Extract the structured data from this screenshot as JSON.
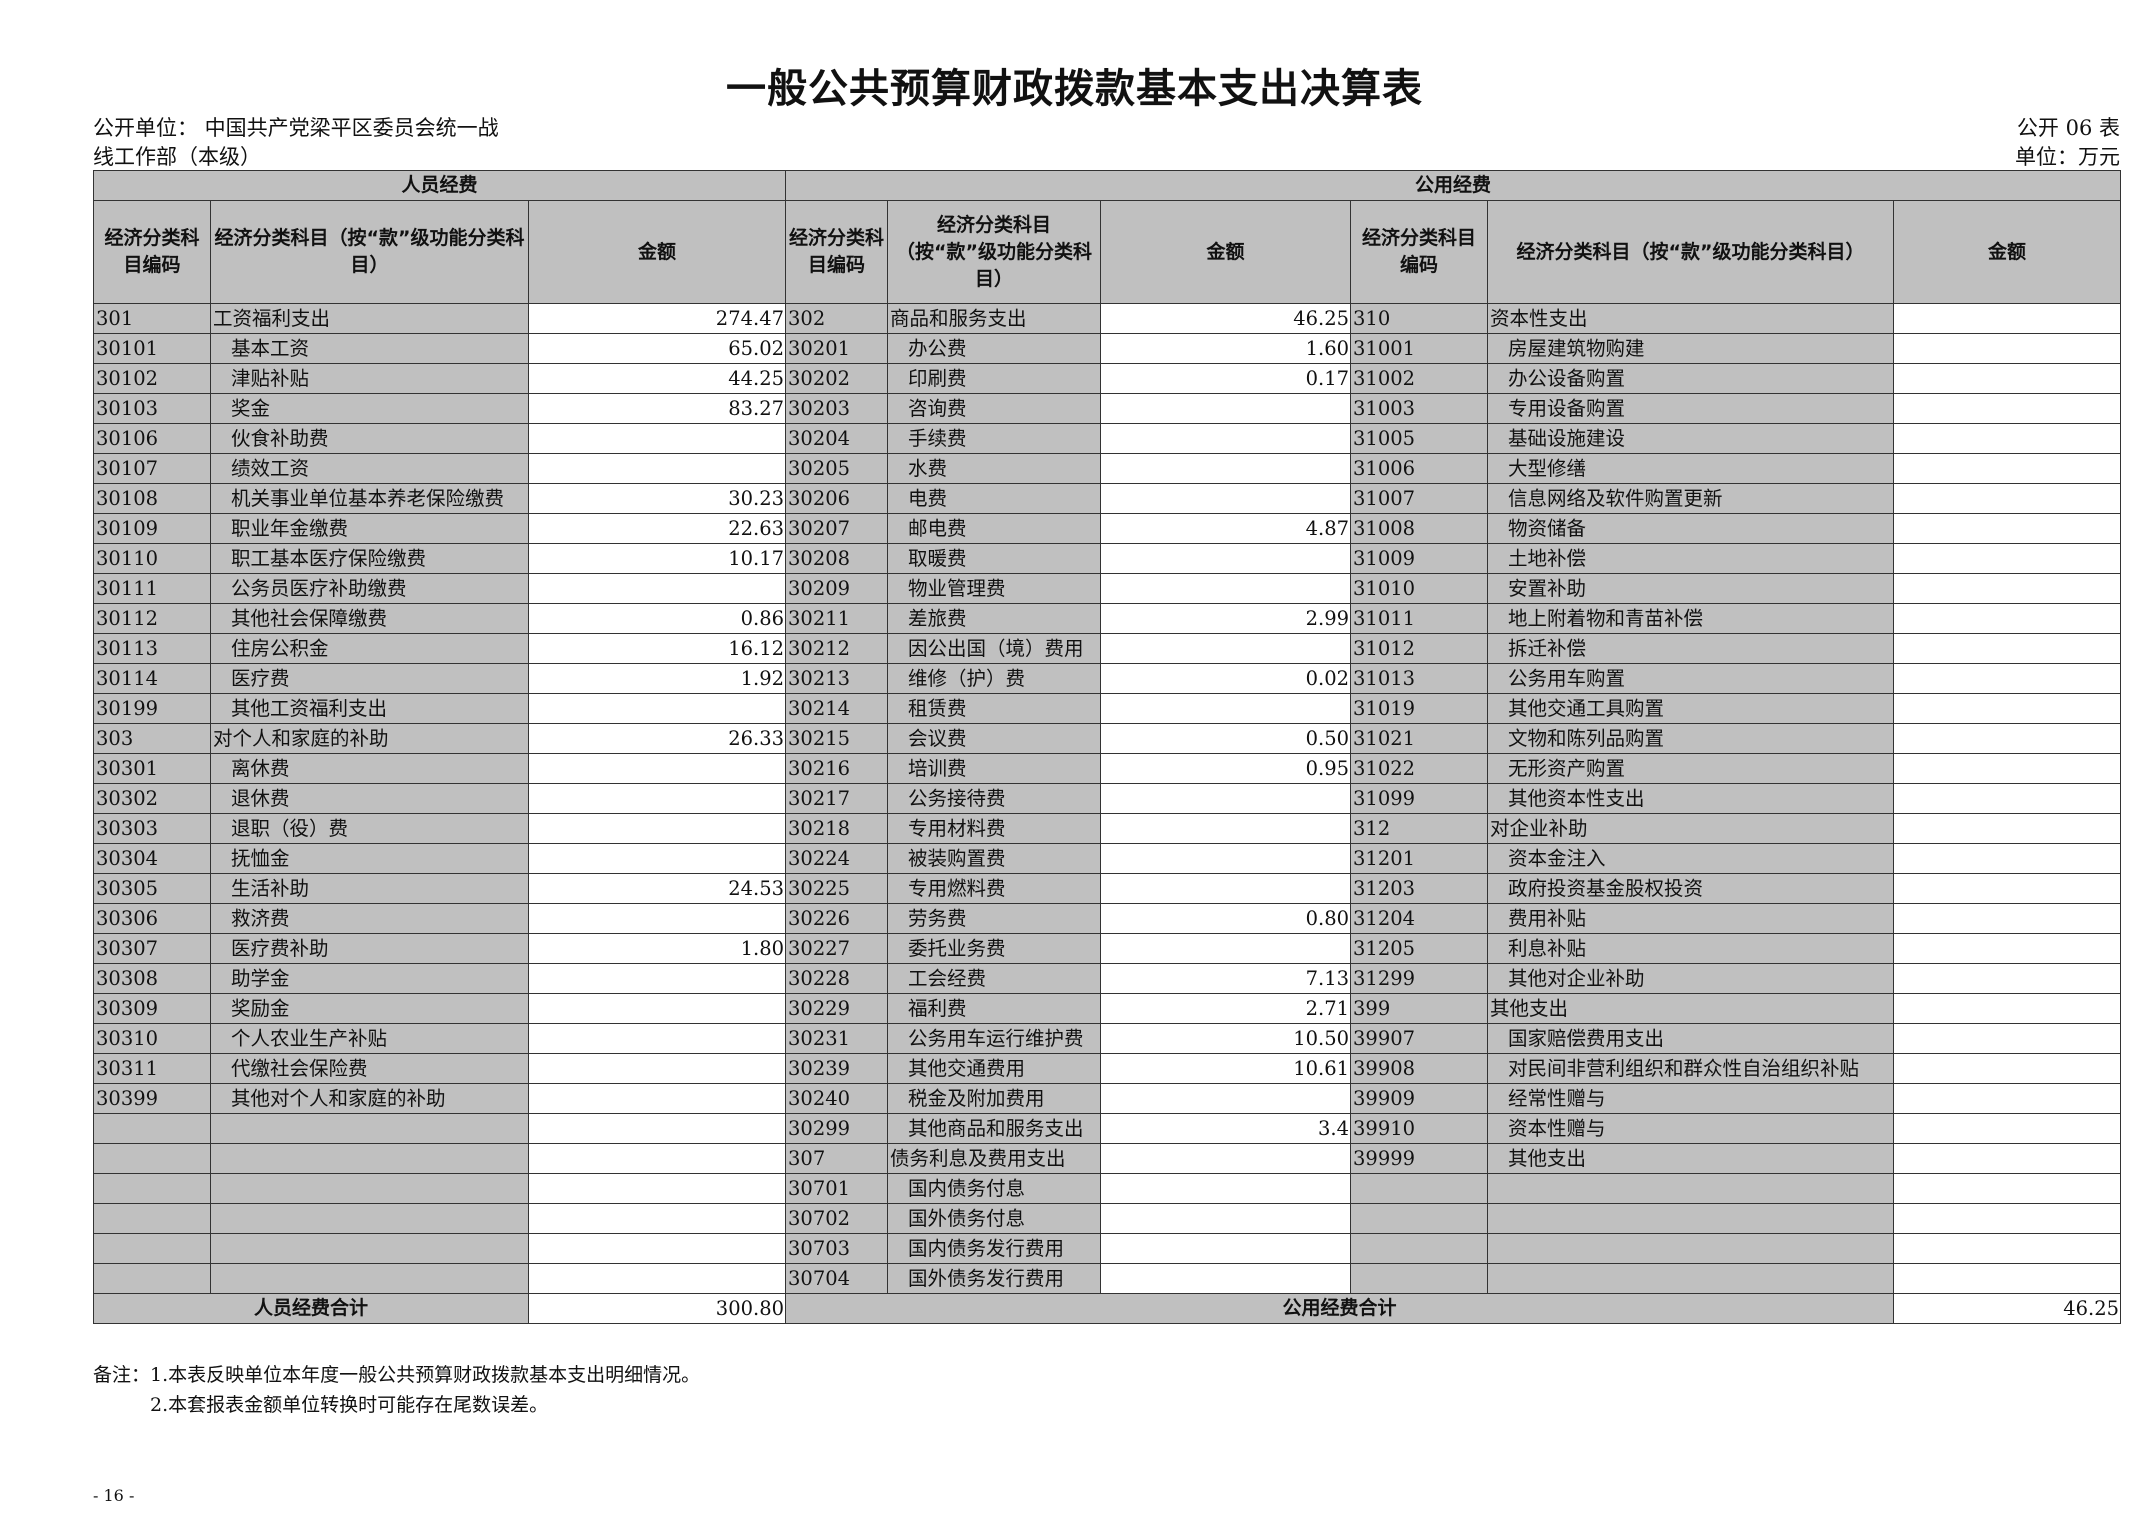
{
  "title": "一般公共预算财政拨款基本支出决算表",
  "unit_label": "公开单位：  中国共产党梁平区委员会统一战",
  "unit_label_2": "线工作部（本级）",
  "table_no": "公开 06 表",
  "currency_unit": "单位：万元",
  "headers": {
    "personnel": "人员经费",
    "public": "公用经费",
    "code_a": "经济分类科目编码",
    "name_a": "经济分类科目（按“款”级功能分类科目）",
    "amount": "金额",
    "code_b": "经济分类科目编码",
    "name_b": "经济分类科目（按“款”级功能分类科目）",
    "code_c": "经济分类科目编码",
    "name_c": "经济分类科目（按“款”级功能分类科目）"
  },
  "personnel_rows": [
    {
      "code": "301",
      "name": "工资福利支出",
      "amount": "274.47"
    },
    {
      "code": "30101",
      "name": "基本工资",
      "amount": "65.02"
    },
    {
      "code": "30102",
      "name": "津贴补贴",
      "amount": "44.25"
    },
    {
      "code": "30103",
      "name": "奖金",
      "amount": "83.27"
    },
    {
      "code": "30106",
      "name": "伙食补助费",
      "amount": ""
    },
    {
      "code": "30107",
      "name": "绩效工资",
      "amount": ""
    },
    {
      "code": "30108",
      "name": "机关事业单位基本养老保险缴费",
      "amount": "30.23"
    },
    {
      "code": "30109",
      "name": "职业年金缴费",
      "amount": "22.63"
    },
    {
      "code": "30110",
      "name": "职工基本医疗保险缴费",
      "amount": "10.17"
    },
    {
      "code": "30111",
      "name": "公务员医疗补助缴费",
      "amount": ""
    },
    {
      "code": "30112",
      "name": "其他社会保障缴费",
      "amount": "0.86"
    },
    {
      "code": "30113",
      "name": "住房公积金",
      "amount": "16.12"
    },
    {
      "code": "30114",
      "name": "医疗费",
      "amount": "1.92"
    },
    {
      "code": "30199",
      "name": "其他工资福利支出",
      "amount": ""
    },
    {
      "code": "303",
      "name": "对个人和家庭的补助",
      "amount": "26.33"
    },
    {
      "code": "30301",
      "name": "离休费",
      "amount": ""
    },
    {
      "code": "30302",
      "name": "退休费",
      "amount": ""
    },
    {
      "code": "30303",
      "name": "退职（役）费",
      "amount": ""
    },
    {
      "code": "30304",
      "name": "抚恤金",
      "amount": ""
    },
    {
      "code": "30305",
      "name": "生活补助",
      "amount": "24.53"
    },
    {
      "code": "30306",
      "name": "救济费",
      "amount": ""
    },
    {
      "code": "30307",
      "name": "医疗费补助",
      "amount": "1.80"
    },
    {
      "code": "30308",
      "name": "助学金",
      "amount": ""
    },
    {
      "code": "30309",
      "name": "奖励金",
      "amount": ""
    },
    {
      "code": "30310",
      "name": "个人农业生产补贴",
      "amount": ""
    },
    {
      "code": "30311",
      "name": "代缴社会保险费",
      "amount": ""
    },
    {
      "code": "30399",
      "name": "其他对个人和家庭的补助",
      "amount": ""
    }
  ],
  "public_rows_b": [
    {
      "code": "302",
      "name": "商品和服务支出",
      "amount": "46.25"
    },
    {
      "code": "30201",
      "name": "办公费",
      "amount": "1.60"
    },
    {
      "code": "30202",
      "name": "印刷费",
      "amount": "0.17"
    },
    {
      "code": "30203",
      "name": "咨询费",
      "amount": ""
    },
    {
      "code": "30204",
      "name": "手续费",
      "amount": ""
    },
    {
      "code": "30205",
      "name": "水费",
      "amount": ""
    },
    {
      "code": "30206",
      "name": "电费",
      "amount": ""
    },
    {
      "code": "30207",
      "name": "邮电费",
      "amount": "4.87"
    },
    {
      "code": "30208",
      "name": "取暖费",
      "amount": ""
    },
    {
      "code": "30209",
      "name": "物业管理费",
      "amount": ""
    },
    {
      "code": "30211",
      "name": "差旅费",
      "amount": "2.99"
    },
    {
      "code": "30212",
      "name": "因公出国（境）费用",
      "amount": ""
    },
    {
      "code": "30213",
      "name": "维修（护）费",
      "amount": "0.02"
    },
    {
      "code": "30214",
      "name": "租赁费",
      "amount": ""
    },
    {
      "code": "30215",
      "name": "会议费",
      "amount": "0.50"
    },
    {
      "code": "30216",
      "name": "培训费",
      "amount": "0.95"
    },
    {
      "code": "30217",
      "name": "公务接待费",
      "amount": ""
    },
    {
      "code": "30218",
      "name": "专用材料费",
      "amount": ""
    },
    {
      "code": "30224",
      "name": "被装购置费",
      "amount": ""
    },
    {
      "code": "30225",
      "name": "专用燃料费",
      "amount": ""
    },
    {
      "code": "30226",
      "name": "劳务费",
      "amount": "0.80"
    },
    {
      "code": "30227",
      "name": "委托业务费",
      "amount": ""
    },
    {
      "code": "30228",
      "name": "工会经费",
      "amount": "7.13"
    },
    {
      "code": "30229",
      "name": "福利费",
      "amount": "2.71"
    },
    {
      "code": "30231",
      "name": "公务用车运行维护费",
      "amount": "10.50"
    },
    {
      "code": "30239",
      "name": "其他交通费用",
      "amount": "10.61"
    },
    {
      "code": "30240",
      "name": "税金及附加费用",
      "amount": ""
    },
    {
      "code": "30299",
      "name": "其他商品和服务支出",
      "amount": "3.4"
    },
    {
      "code": "307",
      "name": "债务利息及费用支出",
      "amount": ""
    },
    {
      "code": "30701",
      "name": "国内债务付息",
      "amount": ""
    },
    {
      "code": "30702",
      "name": "国外债务付息",
      "amount": ""
    },
    {
      "code": "30703",
      "name": "国内债务发行费用",
      "amount": ""
    },
    {
      "code": "30704",
      "name": "国外债务发行费用",
      "amount": ""
    }
  ],
  "public_rows_c": [
    {
      "code": "310",
      "name": "资本性支出",
      "amount": ""
    },
    {
      "code": "31001",
      "name": "房屋建筑物购建",
      "amount": ""
    },
    {
      "code": "31002",
      "name": "办公设备购置",
      "amount": ""
    },
    {
      "code": "31003",
      "name": "专用设备购置",
      "amount": ""
    },
    {
      "code": "31005",
      "name": "基础设施建设",
      "amount": ""
    },
    {
      "code": "31006",
      "name": "大型修缮",
      "amount": ""
    },
    {
      "code": "31007",
      "name": "信息网络及软件购置更新",
      "amount": ""
    },
    {
      "code": "31008",
      "name": "物资储备",
      "amount": ""
    },
    {
      "code": "31009",
      "name": "土地补偿",
      "amount": ""
    },
    {
      "code": "31010",
      "name": "安置补助",
      "amount": ""
    },
    {
      "code": "31011",
      "name": "地上附着物和青苗补偿",
      "amount": ""
    },
    {
      "code": "31012",
      "name": "拆迁补偿",
      "amount": ""
    },
    {
      "code": "31013",
      "name": "公务用车购置",
      "amount": ""
    },
    {
      "code": "31019",
      "name": "其他交通工具购置",
      "amount": ""
    },
    {
      "code": "31021",
      "name": "文物和陈列品购置",
      "amount": ""
    },
    {
      "code": "31022",
      "name": "无形资产购置",
      "amount": ""
    },
    {
      "code": "31099",
      "name": "其他资本性支出",
      "amount": ""
    },
    {
      "code": "312",
      "name": "对企业补助",
      "amount": ""
    },
    {
      "code": "31201",
      "name": "资本金注入",
      "amount": ""
    },
    {
      "code": "31203",
      "name": "政府投资基金股权投资",
      "amount": ""
    },
    {
      "code": "31204",
      "name": "费用补贴",
      "amount": ""
    },
    {
      "code": "31205",
      "name": "利息补贴",
      "amount": ""
    },
    {
      "code": "31299",
      "name": "其他对企业补助",
      "amount": ""
    },
    {
      "code": "399",
      "name": "其他支出",
      "amount": ""
    },
    {
      "code": "39907",
      "name": "国家赔偿费用支出",
      "amount": ""
    },
    {
      "code": "39908",
      "name": "对民间非营利组织和群众性自治组织补贴",
      "amount": ""
    },
    {
      "code": "39909",
      "name": "经常性赠与",
      "amount": ""
    },
    {
      "code": "39910",
      "name": "资本性赠与",
      "amount": ""
    },
    {
      "code": "39999",
      "name": "其他支出",
      "amount": ""
    }
  ],
  "totals": {
    "personnel_label": "人员经费合计",
    "personnel_value": "300.80",
    "public_label": "公用经费合计",
    "public_value": "46.25"
  },
  "notes": [
    "备注：1.本表反映单位本年度一般公共预算财政拨款基本支出明细情况。",
    "2.本套报表金额单位转换时可能存在尾数误差。"
  ],
  "page_number": "- 16 -",
  "colors": {
    "header_gray": "#c0c0c0",
    "border": "#333333"
  }
}
